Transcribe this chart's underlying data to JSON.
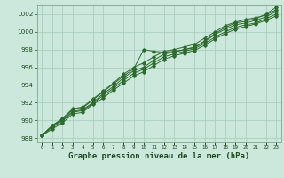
{
  "title": "Graphe pression niveau de la mer (hPa)",
  "x_labels": [
    "0",
    "1",
    "2",
    "3",
    "4",
    "5",
    "6",
    "7",
    "8",
    "9",
    "10",
    "11",
    "12",
    "13",
    "14",
    "15",
    "16",
    "17",
    "18",
    "19",
    "20",
    "21",
    "22",
    "23"
  ],
  "hours": [
    0,
    1,
    2,
    3,
    4,
    5,
    6,
    7,
    8,
    9,
    10,
    11,
    12,
    13,
    14,
    15,
    16,
    17,
    18,
    19,
    20,
    21,
    22,
    23
  ],
  "line1": [
    988.3,
    989.4,
    990.1,
    991.2,
    991.4,
    992.3,
    993.2,
    994.1,
    995.0,
    995.8,
    998.0,
    997.8,
    997.7,
    997.8,
    998.0,
    998.2,
    999.0,
    999.8,
    1000.5,
    1001.0,
    1001.2,
    1001.5,
    1002.0,
    1002.8
  ],
  "line2": [
    988.3,
    989.4,
    990.2,
    991.3,
    991.5,
    992.4,
    993.3,
    994.2,
    995.2,
    996.0,
    996.5,
    997.2,
    997.8,
    998.0,
    998.3,
    998.6,
    999.3,
    1000.0,
    1000.7,
    1001.1,
    1001.4,
    1001.6,
    1001.9,
    1002.5
  ],
  "line3": [
    988.3,
    989.3,
    990.0,
    991.0,
    991.2,
    992.0,
    993.0,
    993.8,
    994.8,
    995.6,
    996.0,
    996.8,
    997.5,
    997.7,
    998.0,
    998.3,
    998.9,
    999.7,
    1000.3,
    1000.8,
    1001.0,
    1001.3,
    1001.7,
    1002.3
  ],
  "line4": [
    988.3,
    989.2,
    989.9,
    990.9,
    991.1,
    991.9,
    992.8,
    993.6,
    994.5,
    995.3,
    995.8,
    996.5,
    997.2,
    997.5,
    997.8,
    998.1,
    998.7,
    999.4,
    1000.0,
    1000.5,
    1000.8,
    1001.0,
    1001.5,
    1002.0
  ],
  "line5": [
    988.3,
    989.0,
    989.7,
    990.7,
    990.9,
    991.8,
    992.5,
    993.4,
    994.2,
    995.0,
    995.5,
    996.2,
    996.9,
    997.3,
    997.6,
    997.9,
    998.5,
    999.2,
    999.8,
    1000.3,
    1000.6,
    1000.9,
    1001.3,
    1001.8
  ],
  "line_color": "#2d6a2d",
  "bg_color": "#cce8dc",
  "grid_color": "#aacfbe",
  "ylim": [
    987.5,
    1003.0
  ],
  "yticks": [
    988,
    990,
    992,
    994,
    996,
    998,
    1000,
    1002
  ],
  "title_color": "#1a4a1a",
  "title_fontsize": 6.5
}
